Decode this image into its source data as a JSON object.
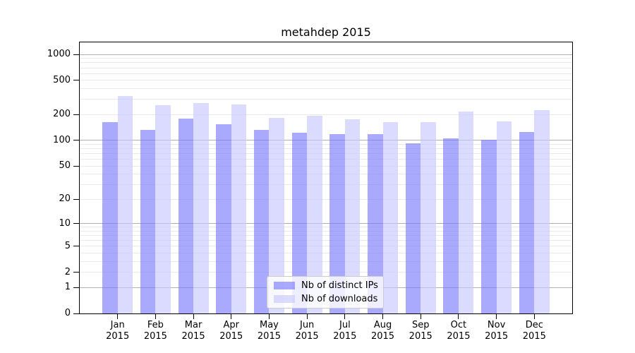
{
  "title": "metahdep 2015",
  "colors": {
    "series_ips": "#a9a9f8",
    "series_downloads": "#dcdcf8",
    "series_ips_rgba": "rgba(119,119,252,0.63)",
    "series_downloads_rgba": "rgba(200,200,255,0.65)",
    "grid_major": "#b0b0b0",
    "grid_minor": "#eaeaea",
    "axis": "#000000",
    "legend_border": "#cccccc"
  },
  "chart_data": {
    "type": "bar",
    "title": "metahdep 2015",
    "categories": [
      "Jan 2015",
      "Feb 2015",
      "Mar 2015",
      "Apr 2015",
      "May 2015",
      "Jun 2015",
      "Jul 2015",
      "Aug 2015",
      "Sep 2015",
      "Oct 2015",
      "Nov 2015",
      "Dec 2015"
    ],
    "series": [
      {
        "name": "Nb of distinct IPs",
        "key": "distinct-ips",
        "color": "#a9a9f8",
        "rgba": "rgba(119,119,252,0.63)",
        "values": [
          165,
          133,
          180,
          155,
          134,
          124,
          118,
          118,
          92,
          106,
          102,
          125
        ]
      },
      {
        "name": "Nb of downloads",
        "key": "downloads",
        "color": "#dcdcf8",
        "rgba": "rgba(200,200,255,0.65)",
        "values": [
          330,
          257,
          272,
          262,
          184,
          194,
          176,
          163,
          163,
          218,
          167,
          225
        ]
      }
    ],
    "y_scale": "log1p",
    "y_ticks": [
      0,
      1,
      2,
      5,
      10,
      20,
      50,
      100,
      200,
      500,
      1000
    ],
    "ylim": [
      0,
      1380
    ],
    "xlabel": "",
    "ylabel": "",
    "grid": "on",
    "legend_position": "lower center"
  }
}
